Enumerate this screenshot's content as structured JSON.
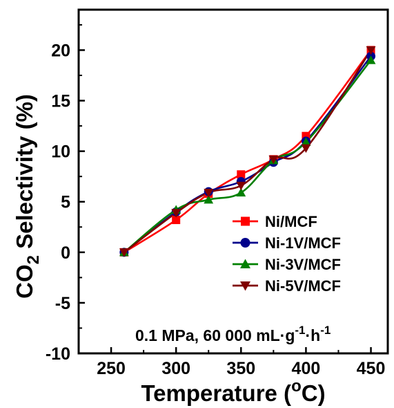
{
  "chart_data": {
    "type": "line",
    "xlabel": {
      "main": "Temperature (",
      "sup": "o",
      "tail": "C)"
    },
    "ylabel": {
      "main": "CO",
      "sub": "2",
      "tail": " Selectivity (%)"
    },
    "xlim": [
      225,
      463
    ],
    "ylim": [
      -10,
      24
    ],
    "xticks": [
      250,
      300,
      350,
      400,
      450
    ],
    "yticks": [
      -10,
      -5,
      0,
      5,
      10,
      15,
      20
    ],
    "grid": false,
    "legend_position": "lower-right",
    "annotation": {
      "prefix": "0.1 MPa, 60 000 mL·g",
      "sup1": "-1",
      "middle": "·h",
      "sup2": "-1"
    },
    "x": [
      260,
      300,
      325,
      350,
      375,
      400,
      450
    ],
    "series": [
      {
        "name": "Ni/MCF",
        "color": "#ff0000",
        "marker": "square",
        "values": [
          0,
          3.2,
          5.8,
          7.7,
          9.2,
          11.5,
          20.0
        ]
      },
      {
        "name": "Ni-1V/MCF",
        "color": "#00008b",
        "marker": "circle",
        "values": [
          0,
          4.0,
          6.0,
          7.0,
          8.9,
          11.0,
          19.4
        ]
      },
      {
        "name": "Ni-3V/MCF",
        "color": "#008000",
        "marker": "triangle-up",
        "values": [
          0,
          4.2,
          5.2,
          5.9,
          9.1,
          10.9,
          19.0
        ]
      },
      {
        "name": "Ni-5V/MCF",
        "color": "#800000",
        "marker": "triangle-down",
        "values": [
          0,
          3.9,
          5.9,
          6.6,
          9.2,
          10.3,
          20.0
        ]
      }
    ]
  }
}
